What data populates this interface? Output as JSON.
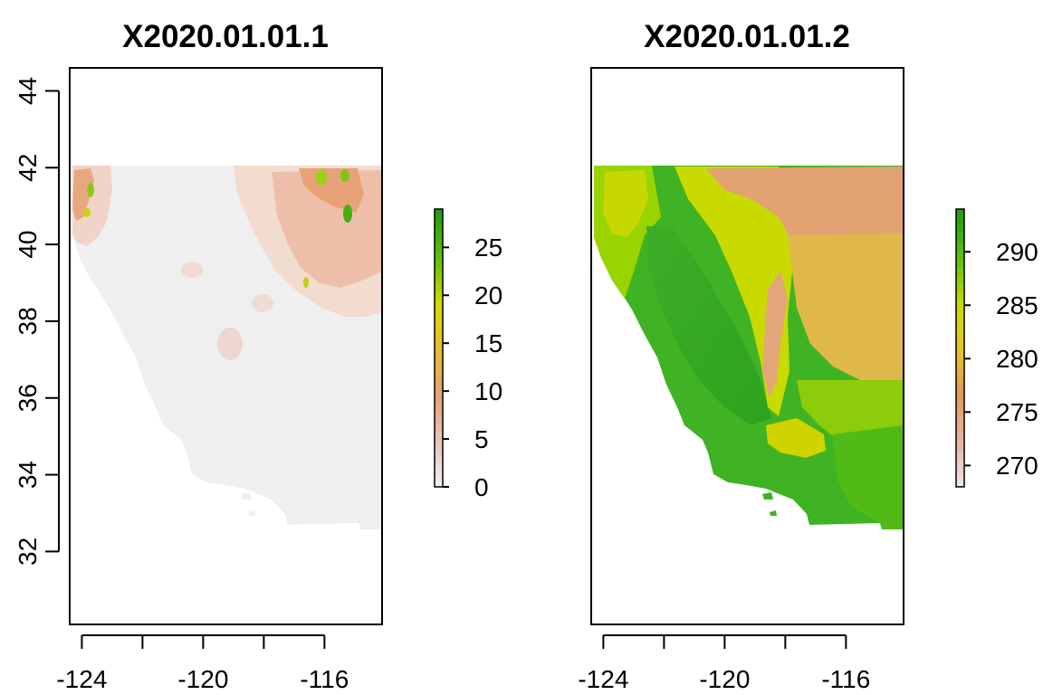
{
  "chart_data": [
    {
      "type": "heatmap",
      "title": "X2020.01.01.1",
      "xlabel": "",
      "ylabel": "",
      "xlim": [
        -124.4,
        -114.1
      ],
      "ylim": [
        30.1,
        44.6
      ],
      "x_ticks": [
        {
          "value": -124,
          "label": "-124"
        },
        {
          "value": -122,
          "label": ""
        },
        {
          "value": -120,
          "label": "-120"
        },
        {
          "value": -118,
          "label": ""
        },
        {
          "value": -116,
          "label": "-116"
        }
      ],
      "y_ticks": [
        {
          "value": 32,
          "label": "32"
        },
        {
          "value": 34,
          "label": "34"
        },
        {
          "value": 36,
          "label": "36"
        },
        {
          "value": 38,
          "label": "38"
        },
        {
          "value": 40,
          "label": "40"
        },
        {
          "value": 42,
          "label": "42"
        },
        {
          "value": 44,
          "label": "44"
        }
      ],
      "legend": {
        "range": [
          0,
          29
        ],
        "ticks": [
          {
            "value": 0,
            "label": "0"
          },
          {
            "value": 5,
            "label": "5"
          },
          {
            "value": 10,
            "label": "10"
          },
          {
            "value": 15,
            "label": "15"
          },
          {
            "value": 20,
            "label": "20"
          },
          {
            "value": 25,
            "label": "25"
          }
        ]
      },
      "colors": {
        "low": "#f0f0f0",
        "mid_low": "#e8a98e",
        "mid": "#e8a23a",
        "mid_high": "#e4d000",
        "high": "#239b12"
      }
    },
    {
      "type": "heatmap",
      "title": "X2020.01.01.2",
      "xlabel": "",
      "ylabel": "",
      "xlim": [
        -124.4,
        -114.1
      ],
      "ylim": [
        30.1,
        44.6
      ],
      "x_ticks": [
        {
          "value": -124,
          "label": "-124"
        },
        {
          "value": -122,
          "label": ""
        },
        {
          "value": -120,
          "label": "-120"
        },
        {
          "value": -118,
          "label": ""
        },
        {
          "value": -116,
          "label": "-116"
        }
      ],
      "legend": {
        "range": [
          268,
          294
        ],
        "ticks": [
          {
            "value": 270,
            "label": "270"
          },
          {
            "value": 275,
            "label": "275"
          },
          {
            "value": 280,
            "label": "280"
          },
          {
            "value": 285,
            "label": "285"
          },
          {
            "value": 290,
            "label": "290"
          }
        ]
      },
      "colors": {
        "low": "#f2e4ec",
        "mid_low": "#e0a689",
        "mid": "#e8c840",
        "mid_high": "#9fd600",
        "high": "#26a617"
      }
    }
  ]
}
